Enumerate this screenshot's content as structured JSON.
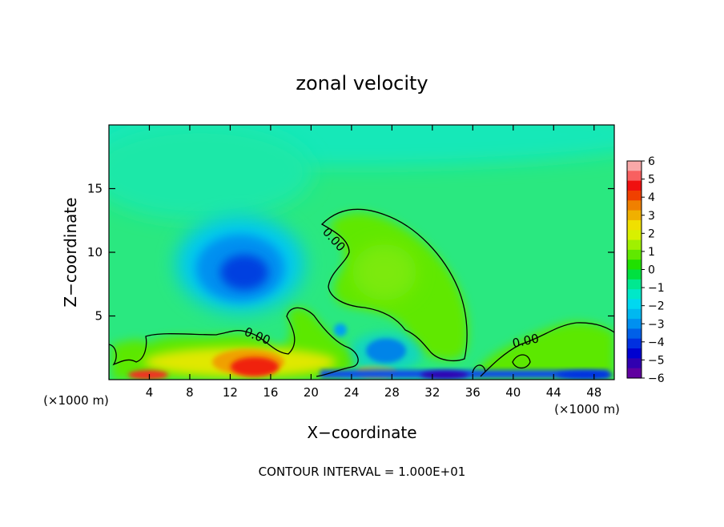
{
  "chart_data": {
    "type": "heatmap",
    "title": "zonal velocity",
    "xlabel": "X−coordinate",
    "ylabel": "Z−coordinate",
    "x_unit_left": "(×1000 m)",
    "x_unit_right": "(×1000 m)",
    "footer": "CONTOUR INTERVAL = 1.000E+01",
    "contour_label": "0.00",
    "xlim": [
      0,
      50
    ],
    "ylim": [
      0,
      20
    ],
    "xticks": [
      4,
      8,
      12,
      16,
      20,
      24,
      28,
      32,
      36,
      40,
      44,
      48
    ],
    "yticks": [
      5,
      10,
      15
    ],
    "colorbar": {
      "range": [
        -6,
        6
      ],
      "tick_values": [
        6,
        5,
        4,
        3,
        2,
        1,
        0,
        -1,
        -2,
        -3,
        -4,
        -5,
        -6
      ],
      "tick_labels": [
        "6",
        "5",
        "4",
        "3",
        "2",
        "1",
        "0",
        "−1",
        "−2",
        "−3",
        "−4",
        "−5",
        "−6"
      ],
      "colors": [
        "#f8a8a8",
        "#f86060",
        "#f01010",
        "#f04000",
        "#f08000",
        "#f0b000",
        "#f0e000",
        "#d8f000",
        "#a0f000",
        "#60e800",
        "#20e000",
        "#00e040",
        "#00e890",
        "#00e8c8",
        "#00d8f0",
        "#00b8f0",
        "#0090f0",
        "#0060e8",
        "#0030e0",
        "#0000d0",
        "#3000b0",
        "#6000a0"
      ]
    },
    "background_value": -1.3,
    "features": [
      {
        "name": "upper-band",
        "x": 25,
        "z": 18,
        "value": -1.4
      },
      {
        "name": "negative-core",
        "x": 13.5,
        "z": 8.5,
        "value": -4.5
      },
      {
        "name": "negative-ring",
        "x": 14,
        "z": 9,
        "value": -3
      },
      {
        "name": "positive-lobe",
        "x": 27,
        "z": 8.5,
        "value": 0.6
      },
      {
        "name": "near-surface-positive",
        "x": 14,
        "z": 0.8,
        "value": 5
      },
      {
        "name": "surface-negative-jet",
        "x": 27,
        "z": 2,
        "value": -4
      },
      {
        "name": "right-low-positive",
        "x": 45,
        "z": 2.5,
        "value": 0.4
      }
    ]
  }
}
